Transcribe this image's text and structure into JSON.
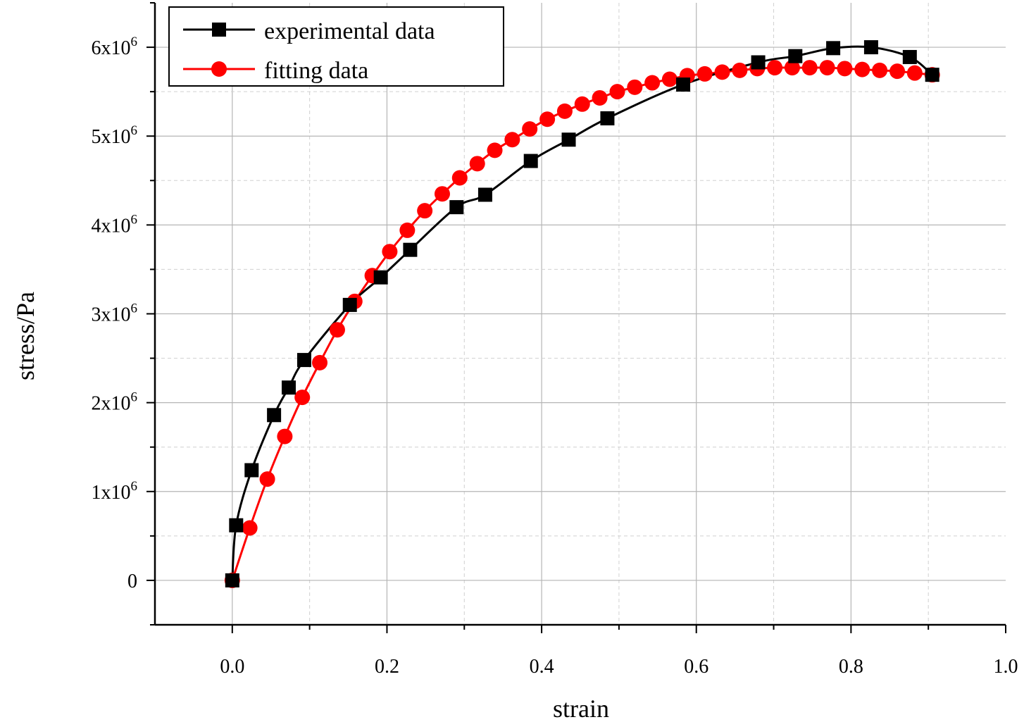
{
  "chart_data": {
    "type": "line",
    "title": "",
    "xlabel": "strain",
    "ylabel": "stress/Pa",
    "xlim": [
      -0.1,
      1.0
    ],
    "ylim": [
      -500000,
      6500000
    ],
    "x_ticks": [
      0.0,
      0.2,
      0.4,
      0.6,
      0.8,
      1.0
    ],
    "x_tick_labels": [
      "0.0",
      "0.2",
      "0.4",
      "0.6",
      "0.8",
      "1.0"
    ],
    "y_ticks": [
      0,
      1000000,
      2000000,
      3000000,
      4000000,
      5000000,
      6000000
    ],
    "y_tick_labels": [
      {
        "base": "0",
        "exp": ""
      },
      {
        "base": "1x10",
        "exp": "6"
      },
      {
        "base": "2x10",
        "exp": "6"
      },
      {
        "base": "3x10",
        "exp": "6"
      },
      {
        "base": "4x10",
        "exp": "6"
      },
      {
        "base": "5x10",
        "exp": "6"
      },
      {
        "base": "6x10",
        "exp": "6"
      }
    ],
    "grid": true,
    "legend_position": "top-left",
    "series": [
      {
        "name": "experimental data",
        "color": "#000000",
        "marker": "square",
        "x": [
          0.0,
          0.005,
          0.025,
          0.054,
          0.073,
          0.093,
          0.152,
          0.192,
          0.23,
          0.29,
          0.327,
          0.386,
          0.435,
          0.485,
          0.583,
          0.68,
          0.728,
          0.777,
          0.826,
          0.876,
          0.905
        ],
        "y": [
          0,
          620000,
          1240000,
          1860000,
          2170000,
          2480000,
          3100000,
          3410000,
          3720000,
          4200000,
          4340000,
          4720000,
          4960000,
          5200000,
          5580000,
          5830000,
          5900000,
          5990000,
          6000000,
          5890000,
          5690000
        ]
      },
      {
        "name": "fitting data",
        "color": "#ff0000",
        "marker": "circle",
        "x": [
          0.0,
          0.0226,
          0.0453,
          0.0679,
          0.0905,
          0.1131,
          0.1358,
          0.1584,
          0.181,
          0.2036,
          0.2263,
          0.2489,
          0.2715,
          0.2941,
          0.3168,
          0.3394,
          0.362,
          0.3846,
          0.4073,
          0.4299,
          0.4525,
          0.4751,
          0.4978,
          0.5204,
          0.543,
          0.5656,
          0.5883,
          0.6109,
          0.6335,
          0.6561,
          0.6788,
          0.7014,
          0.724,
          0.7466,
          0.7693,
          0.7919,
          0.8145,
          0.8371,
          0.8598,
          0.8824,
          0.905
        ],
        "y": [
          0,
          590000,
          1140000,
          1620000,
          2060000,
          2450000,
          2820000,
          3140000,
          3430000,
          3700000,
          3940000,
          4160000,
          4350000,
          4530000,
          4690000,
          4840000,
          4960000,
          5080000,
          5190000,
          5280000,
          5360000,
          5430000,
          5500000,
          5550000,
          5600000,
          5640000,
          5680000,
          5700000,
          5720000,
          5740000,
          5760000,
          5770000,
          5770000,
          5770000,
          5770000,
          5760000,
          5750000,
          5740000,
          5730000,
          5710000,
          5690000
        ]
      }
    ]
  }
}
